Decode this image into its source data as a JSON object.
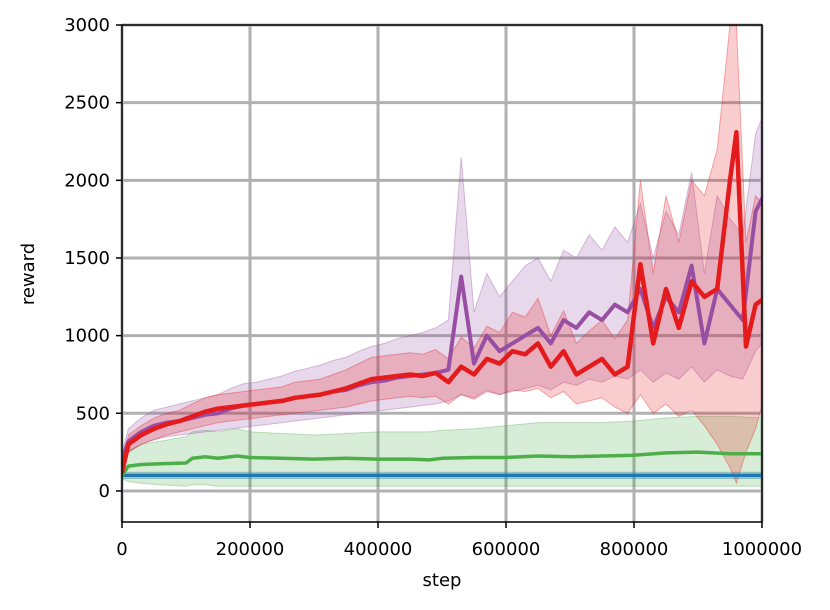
{
  "chart_data": {
    "type": "line",
    "xlabel": "step",
    "ylabel": "reward",
    "xlim": [
      0,
      1000000
    ],
    "ylim": [
      -200,
      3000
    ],
    "grid": true,
    "x_ticks": [
      "0",
      "200000",
      "400000",
      "600000",
      "800000",
      "1000000"
    ],
    "y_ticks": [
      "0",
      "500",
      "1000",
      "1500",
      "2000",
      "2500",
      "3000"
    ],
    "x_tick_values": [
      0,
      200000,
      400000,
      600000,
      800000,
      1000000
    ],
    "y_tick_values": [
      0,
      500,
      1000,
      1500,
      2000,
      2500,
      3000
    ],
    "series": [
      {
        "color": "#1f77b4",
        "x": [
          0,
          100000,
          200000,
          300000,
          400000,
          500000,
          600000,
          700000,
          800000,
          900000,
          1000000
        ],
        "values": [
          100,
          100,
          100,
          100,
          100,
          100,
          100,
          100,
          100,
          100,
          100
        ],
        "band_low": [
          80,
          80,
          80,
          80,
          80,
          80,
          80,
          80,
          80,
          80,
          80
        ],
        "band_high": [
          120,
          120,
          120,
          120,
          120,
          120,
          120,
          120,
          120,
          120,
          120
        ]
      },
      {
        "color": "#4daf4a",
        "x": [
          0,
          10000,
          30000,
          60000,
          100000,
          110000,
          130000,
          150000,
          180000,
          200000,
          250000,
          300000,
          350000,
          400000,
          450000,
          480000,
          500000,
          550000,
          600000,
          650000,
          700000,
          750000,
          800000,
          850000,
          900000,
          950000,
          1000000
        ],
        "values": [
          100,
          160,
          170,
          175,
          180,
          210,
          220,
          210,
          225,
          215,
          210,
          205,
          210,
          205,
          205,
          200,
          210,
          215,
          215,
          225,
          220,
          225,
          230,
          245,
          250,
          240,
          240
        ],
        "band_low": [
          80,
          60,
          50,
          40,
          30,
          40,
          40,
          30,
          30,
          30,
          30,
          30,
          30,
          30,
          30,
          30,
          30,
          30,
          30,
          30,
          30,
          30,
          30,
          30,
          30,
          30,
          30
        ],
        "band_high": [
          150,
          260,
          300,
          320,
          350,
          380,
          390,
          380,
          400,
          380,
          370,
          360,
          370,
          380,
          380,
          380,
          390,
          400,
          420,
          440,
          440,
          440,
          450,
          470,
          480,
          480,
          470
        ]
      },
      {
        "color": "#984ea3",
        "x": [
          0,
          10000,
          30000,
          50000,
          70000,
          90000,
          110000,
          130000,
          150000,
          170000,
          190000,
          210000,
          230000,
          250000,
          270000,
          290000,
          310000,
          330000,
          350000,
          370000,
          390000,
          410000,
          430000,
          450000,
          470000,
          490000,
          510000,
          530000,
          550000,
          570000,
          590000,
          610000,
          630000,
          650000,
          670000,
          690000,
          710000,
          730000,
          750000,
          770000,
          790000,
          810000,
          830000,
          850000,
          870000,
          890000,
          910000,
          930000,
          950000,
          970000,
          990000,
          1000000
        ],
        "values": [
          200,
          320,
          380,
          420,
          440,
          450,
          470,
          490,
          500,
          530,
          550,
          560,
          570,
          580,
          600,
          610,
          620,
          640,
          650,
          680,
          700,
          710,
          730,
          740,
          750,
          760,
          780,
          1380,
          820,
          1000,
          900,
          950,
          1000,
          1050,
          950,
          1100,
          1050,
          1150,
          1100,
          1200,
          1150,
          1300,
          1050,
          1250,
          1150,
          1450,
          950,
          1300,
          1200,
          1100,
          1800,
          1880
        ],
        "band_low": [
          150,
          250,
          300,
          330,
          350,
          360,
          370,
          380,
          390,
          400,
          410,
          420,
          430,
          440,
          450,
          460,
          470,
          480,
          490,
          500,
          510,
          520,
          530,
          540,
          550,
          560,
          580,
          620,
          600,
          650,
          620,
          640,
          660,
          680,
          650,
          700,
          680,
          720,
          700,
          740,
          720,
          780,
          700,
          760,
          720,
          800,
          700,
          780,
          740,
          720,
          900,
          950
        ],
        "band_high": [
          250,
          400,
          470,
          520,
          540,
          560,
          580,
          600,
          620,
          660,
          690,
          700,
          720,
          740,
          770,
          790,
          810,
          840,
          860,
          900,
          930,
          950,
          980,
          1000,
          1020,
          1050,
          1100,
          2150,
          1150,
          1400,
          1250,
          1350,
          1450,
          1500,
          1350,
          1550,
          1500,
          1650,
          1550,
          1700,
          1600,
          1850,
          1500,
          1800,
          1650,
          2050,
          1400,
          1900,
          1750,
          1650,
          2300,
          2400
        ]
      },
      {
        "color": "#e41a1c",
        "x": [
          0,
          10000,
          30000,
          50000,
          70000,
          90000,
          110000,
          130000,
          150000,
          170000,
          190000,
          210000,
          230000,
          250000,
          270000,
          290000,
          310000,
          330000,
          350000,
          370000,
          390000,
          410000,
          430000,
          450000,
          470000,
          490000,
          510000,
          530000,
          550000,
          570000,
          590000,
          610000,
          630000,
          650000,
          670000,
          690000,
          710000,
          730000,
          750000,
          770000,
          790000,
          810000,
          830000,
          850000,
          870000,
          890000,
          910000,
          930000,
          950000,
          960000,
          975000,
          990000,
          1000000
        ],
        "values": [
          120,
          300,
          360,
          400,
          430,
          450,
          480,
          510,
          530,
          540,
          550,
          560,
          570,
          580,
          600,
          610,
          620,
          640,
          660,
          690,
          720,
          730,
          740,
          750,
          740,
          760,
          700,
          800,
          750,
          850,
          820,
          900,
          880,
          950,
          800,
          900,
          750,
          800,
          850,
          750,
          800,
          1460,
          950,
          1300,
          1050,
          1350,
          1250,
          1300,
          2000,
          2310,
          930,
          1200,
          1230
        ],
        "band_low": [
          100,
          250,
          300,
          330,
          360,
          380,
          400,
          420,
          440,
          450,
          460,
          470,
          480,
          490,
          500,
          510,
          520,
          530,
          540,
          560,
          580,
          590,
          600,
          610,
          600,
          610,
          560,
          620,
          590,
          640,
          620,
          650,
          640,
          660,
          600,
          640,
          560,
          580,
          600,
          540,
          500,
          620,
          500,
          560,
          480,
          520,
          420,
          300,
          150,
          50,
          250,
          400,
          550
        ],
        "band_high": [
          150,
          360,
          420,
          470,
          500,
          520,
          560,
          600,
          620,
          630,
          640,
          650,
          660,
          670,
          700,
          710,
          720,
          750,
          780,
          820,
          860,
          870,
          880,
          890,
          880,
          910,
          850,
          990,
          920,
          1060,
          1020,
          1150,
          1120,
          1240,
          1000,
          1160,
          950,
          1030,
          1100,
          980,
          1100,
          2000,
          1400,
          1900,
          1600,
          2000,
          1900,
          2200,
          3000,
          3000,
          1600,
          1900,
          1850
        ]
      }
    ]
  }
}
